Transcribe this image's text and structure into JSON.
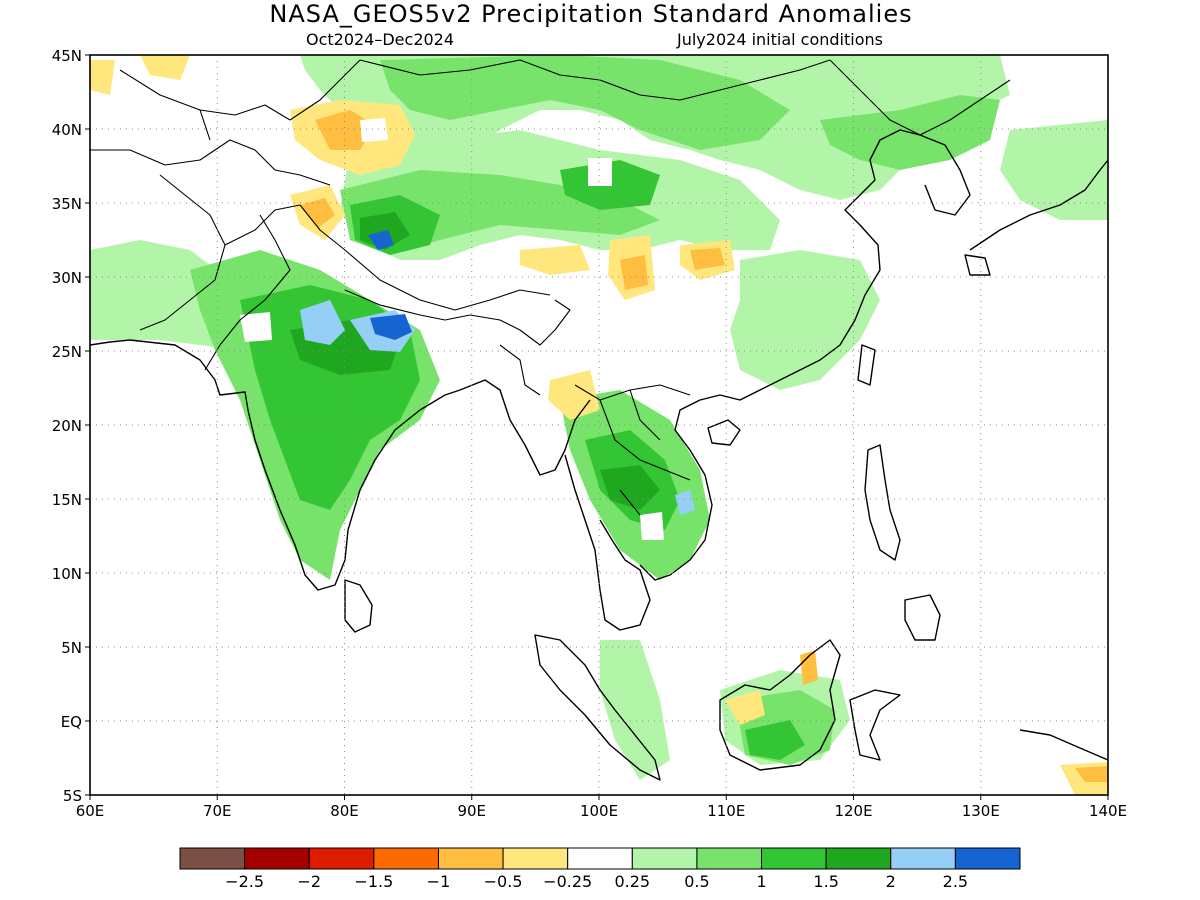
{
  "title": "NASA_GEOS5v2 Precipitation Standard Anomalies",
  "subtitle_left": "Oct2024–Dec2024",
  "subtitle_right": "July2024 initial conditions",
  "lon_labels": [
    "60E",
    "70E",
    "80E",
    "90E",
    "100E",
    "110E",
    "120E",
    "130E",
    "140E"
  ],
  "lat_labels": [
    "45N",
    "40N",
    "35N",
    "30N",
    "25N",
    "20N",
    "15N",
    "10N",
    "5N",
    "EQ",
    "5S"
  ],
  "legend": {
    "colors": [
      "#7b4f43",
      "#a50000",
      "#e01c00",
      "#ff6a00",
      "#ffbe3f",
      "#ffe77e",
      "#ffffff",
      "#b3f5a8",
      "#78e36b",
      "#34c534",
      "#1fa81f",
      "#96cff5",
      "#1664d2"
    ],
    "labels": [
      "−2.5",
      "−2",
      "−1.5",
      "−1",
      "−0.5",
      "−0.25",
      "0.25",
      "0.5",
      "1",
      "1.5",
      "2",
      "2.5"
    ]
  },
  "colors": {
    "light_green": "#b3f5a8",
    "green": "#78e36b",
    "mid_green": "#34c534",
    "dark_green": "#1fa81f",
    "light_blue": "#96cff5",
    "blue": "#1664d2",
    "yellow": "#ffe77e",
    "orange": "#ffbe3f"
  }
}
